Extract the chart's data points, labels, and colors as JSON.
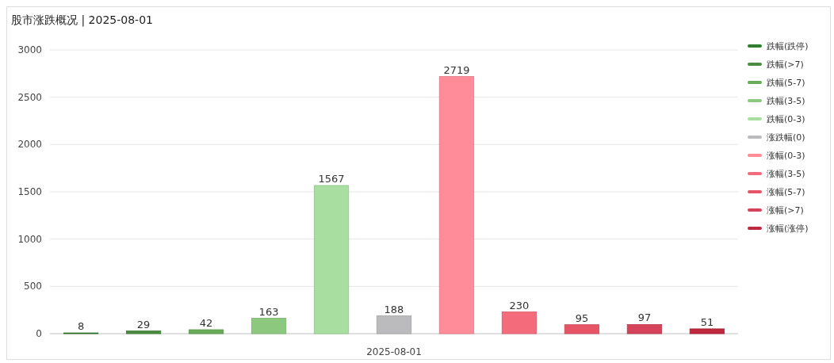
{
  "chart_data": {
    "type": "bar",
    "title": "股市涨跌概况 | 2025-08-01",
    "categories": [
      "2025-08-01"
    ],
    "series": [
      {
        "name": "跌幅(跌停)",
        "color": "#2f7d2f",
        "values": [
          8
        ]
      },
      {
        "name": "跌幅(>7)",
        "color": "#4a8c3f",
        "values": [
          29
        ]
      },
      {
        "name": "跌幅(5-7)",
        "color": "#68ac5a",
        "values": [
          42
        ]
      },
      {
        "name": "跌幅(3-5)",
        "color": "#8cc97f",
        "values": [
          163
        ]
      },
      {
        "name": "跌幅(0-3)",
        "color": "#a8dfa0",
        "values": [
          1567
        ]
      },
      {
        "name": "涨跌幅(0)",
        "color": "#bbbbbd",
        "values": [
          188
        ]
      },
      {
        "name": "涨幅(0-3)",
        "color": "#ff8c98",
        "values": [
          2719
        ]
      },
      {
        "name": "涨幅(3-5)",
        "color": "#f46b7b",
        "values": [
          230
        ]
      },
      {
        "name": "涨幅(5-7)",
        "color": "#e65468",
        "values": [
          95
        ]
      },
      {
        "name": "涨幅(>7)",
        "color": "#d4435a",
        "values": [
          97
        ]
      },
      {
        "name": "涨幅(涨停)",
        "color": "#c0283e",
        "values": [
          51
        ]
      }
    ],
    "ylim": [
      0,
      3000
    ],
    "yticks": [
      0,
      500,
      1000,
      1500,
      2000,
      2500,
      3000
    ],
    "grid": "y",
    "legend": "right",
    "data_labels": true
  }
}
